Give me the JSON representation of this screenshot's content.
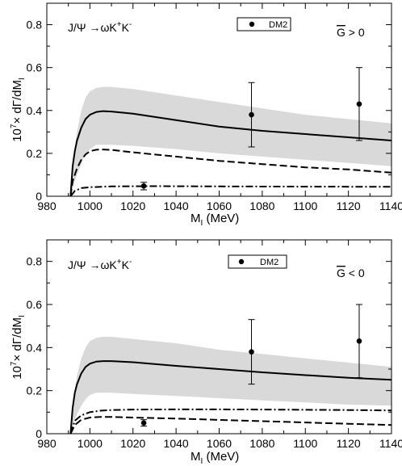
{
  "chart_data": [
    {
      "type": "line",
      "annotation": "J/Ψ→ωK⁺K⁻",
      "condition": "G̅ > 0",
      "xlabel": "M_I (MeV)",
      "ylabel": "10^7× dΓ/dM_I",
      "xlim": [
        980,
        1140
      ],
      "ylim": [
        0,
        0.9
      ],
      "xticks": [
        980,
        1000,
        1020,
        1040,
        1060,
        1080,
        1100,
        1120,
        1140
      ],
      "yticks": [
        0,
        0.2,
        0.4,
        0.6,
        0.8
      ],
      "legend": {
        "label": "DM2",
        "placement": "top-center"
      },
      "band": {
        "x": [
          991,
          992,
          994,
          996,
          998,
          1000,
          1003,
          1006,
          1010,
          1020,
          1040,
          1060,
          1080,
          1100,
          1120,
          1140
        ],
        "upper": [
          0,
          0.16,
          0.3,
          0.4,
          0.46,
          0.49,
          0.505,
          0.51,
          0.51,
          0.5,
          0.47,
          0.44,
          0.41,
          0.38,
          0.36,
          0.34
        ],
        "lower": [
          0,
          0.04,
          0.1,
          0.15,
          0.2,
          0.22,
          0.24,
          0.24,
          0.24,
          0.235,
          0.22,
          0.2,
          0.185,
          0.17,
          0.155,
          0.14
        ]
      },
      "series": [
        {
          "style": "solid",
          "x": [
            991,
            992,
            993,
            994,
            996,
            998,
            1000,
            1003,
            1006,
            1010,
            1020,
            1040,
            1060,
            1080,
            1100,
            1120,
            1140
          ],
          "y": [
            0,
            0.14,
            0.21,
            0.26,
            0.32,
            0.36,
            0.38,
            0.393,
            0.397,
            0.395,
            0.385,
            0.355,
            0.325,
            0.305,
            0.29,
            0.275,
            0.26
          ]
        },
        {
          "style": "dashed",
          "x": [
            991,
            992,
            994,
            996,
            998,
            1000,
            1003,
            1006,
            1010,
            1020,
            1040,
            1060,
            1080,
            1100,
            1120,
            1140
          ],
          "y": [
            0,
            0.07,
            0.13,
            0.17,
            0.195,
            0.21,
            0.217,
            0.218,
            0.216,
            0.205,
            0.185,
            0.165,
            0.15,
            0.135,
            0.125,
            0.11
          ]
        },
        {
          "style": "dashdot",
          "x": [
            991,
            993,
            996,
            1000,
            1010,
            1030,
            1060,
            1100,
            1140
          ],
          "y": [
            0,
            0.025,
            0.038,
            0.042,
            0.046,
            0.047,
            0.046,
            0.045,
            0.044
          ]
        }
      ],
      "points": [
        {
          "x": 1025,
          "y": 0.048,
          "yerr_low": 0.03,
          "yerr_high": 0.065
        },
        {
          "x": 1075,
          "y": 0.38,
          "yerr_low": 0.23,
          "yerr_high": 0.53
        },
        {
          "x": 1125,
          "y": 0.43,
          "yerr_low": 0.26,
          "yerr_high": 0.6
        }
      ]
    },
    {
      "type": "line",
      "annotation": "J/Ψ→ωK⁺K⁻",
      "condition": "G̅ < 0",
      "xlabel": "M_I (MeV)",
      "ylabel": "10^7× dΓ/dM_I",
      "xlim": [
        980,
        1140
      ],
      "ylim": [
        0,
        0.9
      ],
      "xticks": [
        980,
        1000,
        1020,
        1040,
        1060,
        1080,
        1100,
        1120,
        1140
      ],
      "yticks": [
        0,
        0.2,
        0.4,
        0.6,
        0.8
      ],
      "legend": {
        "label": "DM2",
        "placement": "top-center"
      },
      "band": {
        "x": [
          991,
          992,
          994,
          996,
          998,
          1000,
          1003,
          1006,
          1010,
          1020,
          1040,
          1060,
          1080,
          1100,
          1120,
          1140
        ],
        "upper": [
          0,
          0.14,
          0.27,
          0.35,
          0.4,
          0.43,
          0.445,
          0.45,
          0.45,
          0.44,
          0.42,
          0.39,
          0.37,
          0.35,
          0.33,
          0.31
        ],
        "lower": [
          0,
          0.04,
          0.09,
          0.13,
          0.16,
          0.18,
          0.19,
          0.19,
          0.19,
          0.185,
          0.175,
          0.165,
          0.155,
          0.145,
          0.135,
          0.13
        ]
      },
      "series": [
        {
          "style": "solid",
          "x": [
            991,
            992,
            993,
            994,
            996,
            998,
            1000,
            1003,
            1006,
            1010,
            1020,
            1040,
            1060,
            1080,
            1100,
            1120,
            1140
          ],
          "y": [
            0,
            0.12,
            0.19,
            0.23,
            0.28,
            0.31,
            0.325,
            0.335,
            0.337,
            0.337,
            0.332,
            0.315,
            0.3,
            0.285,
            0.272,
            0.26,
            0.25
          ]
        },
        {
          "style": "dashed",
          "x": [
            991,
            993,
            996,
            1000,
            1005,
            1010,
            1020,
            1040,
            1060,
            1080,
            1100,
            1120,
            1140
          ],
          "y": [
            0,
            0.04,
            0.065,
            0.075,
            0.078,
            0.078,
            0.075,
            0.07,
            0.064,
            0.058,
            0.052,
            0.046,
            0.04
          ]
        },
        {
          "style": "dashdot",
          "x": [
            991,
            993,
            996,
            1000,
            1005,
            1010,
            1020,
            1040,
            1060,
            1080,
            1100,
            1120,
            1140
          ],
          "y": [
            0,
            0.06,
            0.085,
            0.1,
            0.107,
            0.11,
            0.112,
            0.113,
            0.113,
            0.112,
            0.111,
            0.11,
            0.108
          ]
        }
      ],
      "points": [
        {
          "x": 1025,
          "y": 0.05,
          "yerr_low": 0.035,
          "yerr_high": 0.065
        },
        {
          "x": 1075,
          "y": 0.38,
          "yerr_low": 0.23,
          "yerr_high": 0.53
        },
        {
          "x": 1125,
          "y": 0.43,
          "yerr_low": 0.26,
          "yerr_high": 0.6
        }
      ]
    }
  ]
}
